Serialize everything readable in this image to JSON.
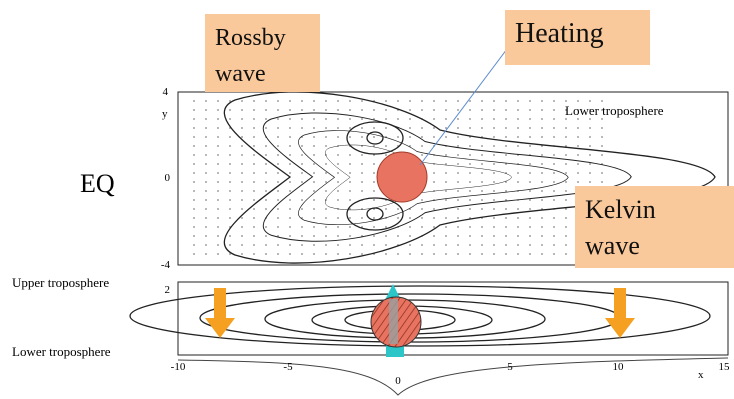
{
  "labels": {
    "rossby": "Rossby\nwave",
    "heating": "Heating",
    "kelvin": "Kelvin\nwave",
    "eq": "EQ",
    "top_lower_troposphere": "Lower troposphere",
    "upper_troposphere": "Upper troposphere",
    "lower_troposphere": "Lower troposphere"
  },
  "top_axis": {
    "y_label": "y",
    "ticks": [
      "4",
      "0",
      "-4"
    ]
  },
  "bottom_axis": {
    "y_tick": "2",
    "x_label": "x",
    "x_ticks": [
      "-10",
      "-5",
      "0",
      "5",
      "10",
      "15"
    ]
  }
}
